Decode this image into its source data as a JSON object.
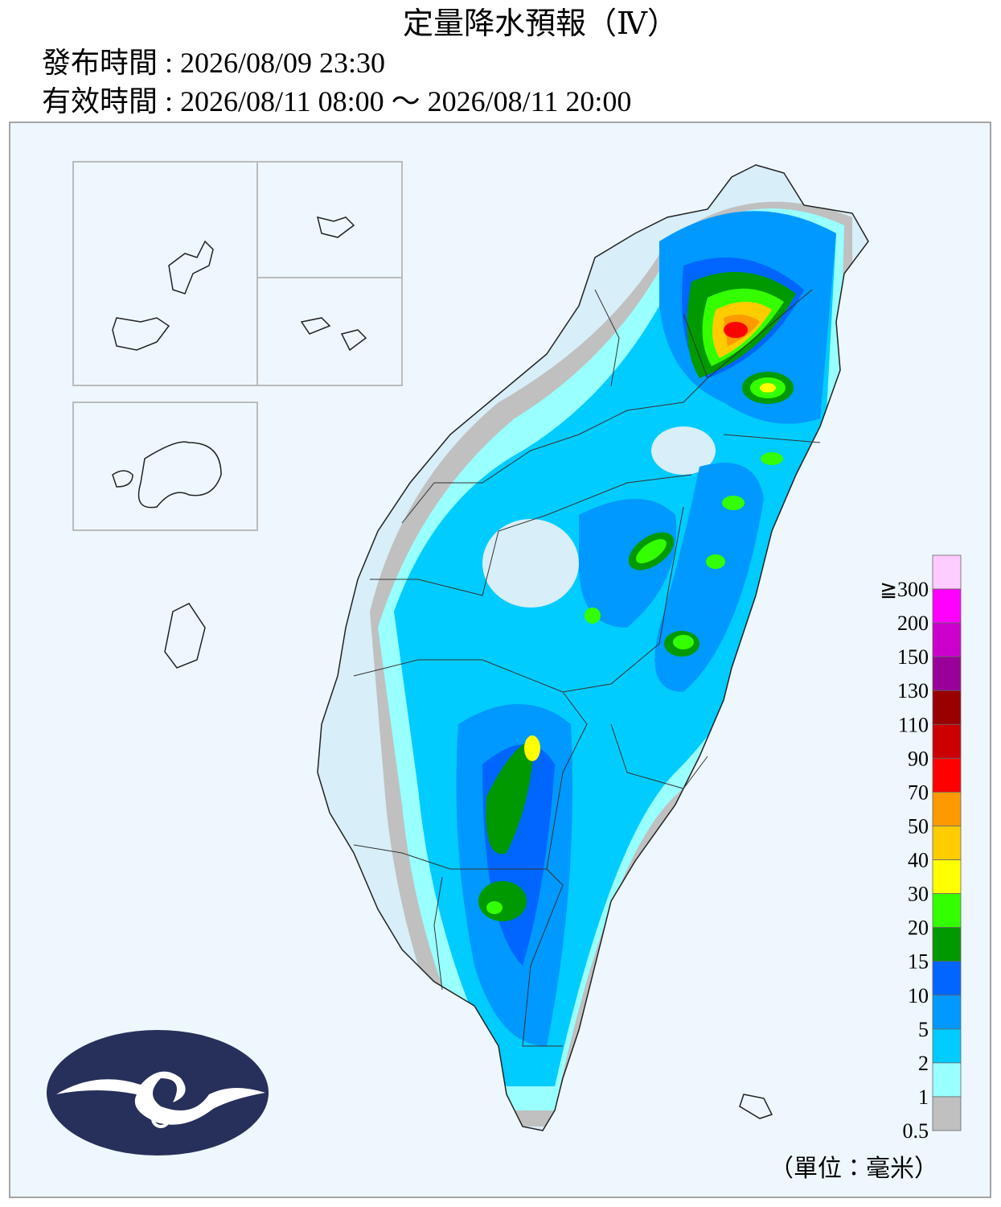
{
  "header": {
    "title": "定量降水預報（Ⅳ）",
    "issued": "發布時間 : 2026/08/09 23:30",
    "valid": "有效時間 : 2026/08/11 08:00 ～ 2026/08/11 20:00"
  },
  "legend": {
    "labels": [
      "≧300",
      "200",
      "150",
      "130",
      "110",
      "90",
      "70",
      "50",
      "40",
      "30",
      "20",
      "15",
      "10",
      "5",
      "2",
      "1",
      "0.5"
    ],
    "colors": [
      "#ffccff",
      "#ff00ff",
      "#cc00cc",
      "#990099",
      "#990000",
      "#cc0000",
      "#ff0000",
      "#ff9900",
      "#ffcc00",
      "#ffff00",
      "#33ff00",
      "#009900",
      "#0066ff",
      "#0099ff",
      "#00ccff",
      "#99ffff",
      "#c0c0c0"
    ],
    "unit": "（單位：毫米）"
  }
}
